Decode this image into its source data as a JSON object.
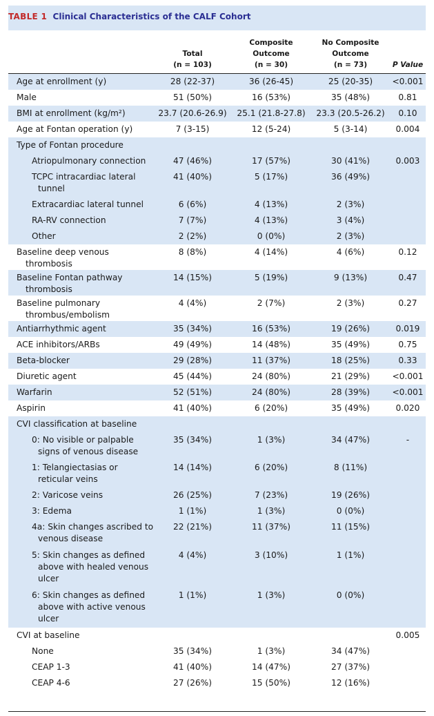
{
  "title": {
    "label": "TABLE 1",
    "text": "Clinical Characteristics of the CALF Cohort"
  },
  "columns": [
    {
      "line1": "",
      "line2": "Total",
      "line3": "(n = 103)"
    },
    {
      "line1": "Composite",
      "line2": "Outcome",
      "line3": "(n = 30)"
    },
    {
      "line1": "No Composite",
      "line2": "Outcome",
      "line3": "(n = 73)"
    },
    {
      "line1": "",
      "line2": "",
      "line3": "P Value"
    }
  ],
  "rows": [
    {
      "label": "Age at enrollment (y)",
      "total": "28 (22-37)",
      "comp": "36 (26-45)",
      "nocomp": "25 (20-35)",
      "p": "<0.001"
    },
    {
      "label": "Male",
      "total": "51 (50%)",
      "comp": "16 (53%)",
      "nocomp": "35 (48%)",
      "p": "0.81"
    },
    {
      "label": "BMI at enrollment (kg/m²)",
      "total": "23.7 (20.6-26.9)",
      "comp": "25.1 (21.8-27.8)",
      "nocomp": "23.3 (20.5-26.2)",
      "p": "0.10"
    },
    {
      "label": "Age at Fontan operation (y)",
      "total": "7 (3-15)",
      "comp": "12 (5-24)",
      "nocomp": "5 (3-14)",
      "p": "0.004"
    },
    {
      "label": "Type of Fontan procedure",
      "total": "",
      "comp": "",
      "nocomp": "",
      "p": ""
    },
    {
      "label": "Atriopulmonary connection",
      "total": "47 (46%)",
      "comp": "17 (57%)",
      "nocomp": "30 (41%)",
      "p": "0.003"
    },
    {
      "label": "TCPC intracardiac lateral tunnel",
      "total": "41 (40%)",
      "comp": "5 (17%)",
      "nocomp": "36 (49%)",
      "p": ""
    },
    {
      "label": "Extracardiac lateral tunnel",
      "total": "6 (6%)",
      "comp": "4 (13%)",
      "nocomp": "2 (3%)",
      "p": ""
    },
    {
      "label": "RA-RV connection",
      "total": "7 (7%)",
      "comp": "4 (13%)",
      "nocomp": "3 (4%)",
      "p": ""
    },
    {
      "label": "Other",
      "total": "2 (2%)",
      "comp": "0 (0%)",
      "nocomp": "2 (3%)",
      "p": ""
    },
    {
      "label": "Baseline deep venous thrombosis",
      "total": "8 (8%)",
      "comp": "4 (14%)",
      "nocomp": "4 (6%)",
      "p": "0.12"
    },
    {
      "label": "Baseline Fontan pathway thrombosis",
      "total": "14 (15%)",
      "comp": "5 (19%)",
      "nocomp": "9 (13%)",
      "p": "0.47"
    },
    {
      "label": "Baseline pulmonary thrombus/embolism",
      "total": "4 (4%)",
      "comp": "2 (7%)",
      "nocomp": "2 (3%)",
      "p": "0.27"
    },
    {
      "label": "Antiarrhythmic agent",
      "total": "35 (34%)",
      "comp": "16 (53%)",
      "nocomp": "19 (26%)",
      "p": "0.019"
    },
    {
      "label": "ACE inhibitors/ARBs",
      "total": "49 (49%)",
      "comp": "14 (48%)",
      "nocomp": "35 (49%)",
      "p": "0.75"
    },
    {
      "label": "Beta-blocker",
      "total": "29 (28%)",
      "comp": "11 (37%)",
      "nocomp": "18 (25%)",
      "p": "0.33"
    },
    {
      "label": "Diuretic agent",
      "total": "45 (44%)",
      "comp": "24 (80%)",
      "nocomp": "21 (29%)",
      "p": "<0.001"
    },
    {
      "label": "Warfarin",
      "total": "52 (51%)",
      "comp": "24 (80%)",
      "nocomp": "28 (39%)",
      "p": "<0.001"
    },
    {
      "label": "Aspirin",
      "total": "41 (40%)",
      "comp": "6 (20%)",
      "nocomp": "35 (49%)",
      "p": "0.020"
    },
    {
      "label": "CVI classification at baseline",
      "total": "",
      "comp": "",
      "nocomp": "",
      "p": ""
    },
    {
      "label": "0: No visible or palpable signs of venous disease",
      "total": "35 (34%)",
      "comp": "1 (3%)",
      "nocomp": "34 (47%)",
      "p": "-"
    },
    {
      "label": "1: Telangiectasias or reticular veins",
      "total": "14 (14%)",
      "comp": "6 (20%)",
      "nocomp": "8 (11%)",
      "p": ""
    },
    {
      "label": "2: Varicose veins",
      "total": "26 (25%)",
      "comp": "7 (23%)",
      "nocomp": "19 (26%)",
      "p": ""
    },
    {
      "label": "3: Edema",
      "total": "1 (1%)",
      "comp": "1 (3%)",
      "nocomp": "0 (0%)",
      "p": ""
    },
    {
      "label": "4a: Skin changes ascribed to venous disease",
      "total": "22 (21%)",
      "comp": "11 (37%)",
      "nocomp": "11 (15%)",
      "p": ""
    },
    {
      "label": "5: Skin changes as defined above with healed venous ulcer",
      "total": "4 (4%)",
      "comp": "3 (10%)",
      "nocomp": "1 (1%)",
      "p": ""
    },
    {
      "label": "6: Skin changes as defined above with active venous ulcer",
      "total": "1 (1%)",
      "comp": "1 (3%)",
      "nocomp": "0 (0%)",
      "p": ""
    },
    {
      "label": "CVI at baseline",
      "total": "",
      "comp": "",
      "nocomp": "",
      "p": "0.005"
    },
    {
      "label": "None",
      "total": "35 (34%)",
      "comp": "1 (3%)",
      "nocomp": "34 (47%)",
      "p": ""
    },
    {
      "label": "CEAP 1-3",
      "total": "41 (40%)",
      "comp": "14 (47%)",
      "nocomp": "27 (37%)",
      "p": ""
    },
    {
      "label": "CEAP 4-6",
      "total": "27 (26%)",
      "comp": "15 (50%)",
      "nocomp": "12 (16%)",
      "p": ""
    }
  ]
}
